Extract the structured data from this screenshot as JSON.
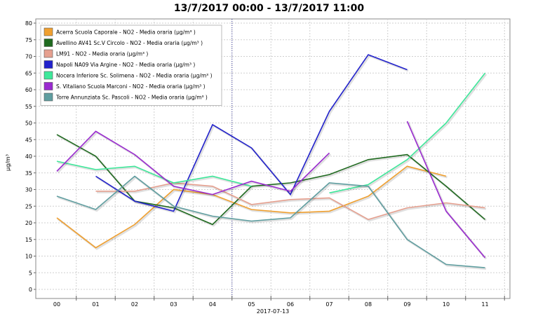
{
  "chart_data": {
    "type": "line",
    "title": "13/7/2017 00:00 - 13/7/2017 11:00",
    "ylabel": "µg/m³",
    "xlabel": "2017-07-13",
    "categories": [
      "00",
      "01",
      "02",
      "03",
      "04",
      "05",
      "06",
      "07",
      "08",
      "09",
      "10",
      "11"
    ],
    "ylim": [
      0,
      80
    ],
    "yticks": [
      0,
      5,
      10,
      15,
      20,
      25,
      30,
      35,
      40,
      45,
      50,
      55,
      60,
      65,
      70,
      75,
      80
    ],
    "grid": true,
    "legend_position": "top-left",
    "series": [
      {
        "name": "Acerra Scuola Caporale - NO2 - Media oraria (µg/m³ )",
        "color": "#f0a030",
        "values": [
          21.5,
          12.5,
          19.5,
          30,
          28.5,
          24,
          23,
          23.5,
          28,
          37,
          34,
          null
        ]
      },
      {
        "name": "Avellino AV41 Sc.V Circolo - NO2 - Media oraria (µg/m³ )",
        "color": "#1f6a1f",
        "values": [
          46.5,
          40,
          26.5,
          24.5,
          19.5,
          31,
          32,
          34.5,
          39,
          40.5,
          31,
          21
        ]
      },
      {
        "name": "LM91 - NO2 - Media oraria (µg/m³ )",
        "color": "#e6a08f",
        "values": [
          null,
          29.5,
          29.5,
          32,
          31,
          25.5,
          27,
          27.5,
          21,
          24.5,
          26,
          24.5
        ]
      },
      {
        "name": "Napoli NA09 Via Argine - NO2 - Media oraria (µg/m³ )",
        "color": "#2222cc",
        "values": [
          null,
          34,
          26.5,
          23.5,
          49.5,
          42.5,
          28.5,
          53.5,
          70.5,
          66,
          null,
          null
        ]
      },
      {
        "name": "Nocera Inferiore Sc. Solimena - NO2 - Media oraria (µg/m³ )",
        "color": "#3ee89a",
        "values": [
          38.5,
          36,
          37,
          32,
          34,
          31,
          null,
          29,
          31.5,
          39,
          50,
          65
        ]
      },
      {
        "name": "S. Vitaliano Scuola Marconi - NO2 - Media oraria (µg/m³ )",
        "color": "#9a2ad0",
        "values": [
          35.5,
          47.5,
          40.5,
          31,
          28.5,
          32.5,
          29.5,
          41,
          null,
          50.5,
          23.5,
          9.5
        ]
      },
      {
        "name": "Torre Annunziata Sc. Pascoli - NO2 - Media oraria (µg/m³ )",
        "color": "#5f9ea0",
        "values": [
          28,
          24,
          34,
          25,
          22,
          20.5,
          21.5,
          32,
          31,
          15,
          7.5,
          6.5
        ]
      }
    ]
  }
}
